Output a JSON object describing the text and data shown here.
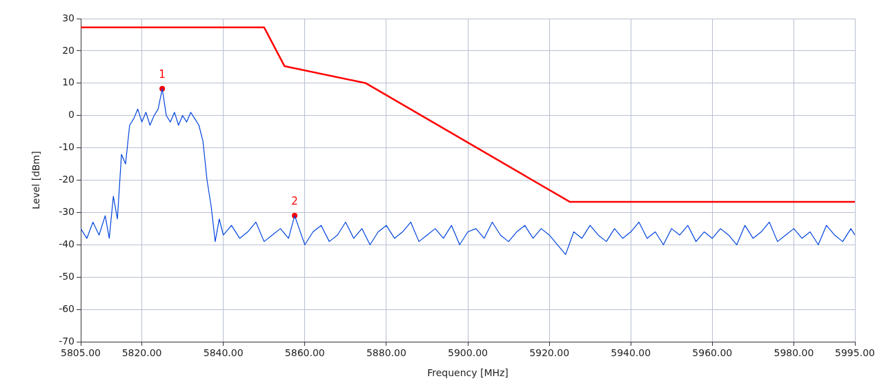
{
  "chart_data": {
    "type": "line",
    "xlabel": "Frequency [MHz]",
    "ylabel": "Level [dBm]",
    "xlim": [
      5805,
      5995
    ],
    "xticks": [
      {
        "value": 5805,
        "label": "5805.00"
      },
      {
        "value": 5820,
        "label": "5820.00"
      },
      {
        "value": 5840,
        "label": "5840.00"
      },
      {
        "value": 5860,
        "label": "5860.00"
      },
      {
        "value": 5880,
        "label": "5880.00"
      },
      {
        "value": 5900,
        "label": "5900.00"
      },
      {
        "value": 5920,
        "label": "5920.00"
      },
      {
        "value": 5940,
        "label": "5940.00"
      },
      {
        "value": 5960,
        "label": "5960.00"
      },
      {
        "value": 5980,
        "label": "5980.00"
      },
      {
        "value": 5995,
        "label": "5995.00"
      }
    ],
    "ylim": [
      -70,
      30
    ],
    "yticks": [
      -70,
      -60,
      -50,
      -40,
      -30,
      -20,
      -10,
      0,
      10,
      20,
      30
    ],
    "grid": true,
    "legend": false,
    "line_style": "solid",
    "series": [
      {
        "type": "line",
        "color": "#0044dd",
        "marker": "none",
        "x": [
          5805,
          5806.5,
          5808,
          5809.5,
          5811,
          5812,
          5813,
          5814,
          5815,
          5816,
          5817,
          5818,
          5819,
          5820,
          5821,
          5822,
          5823,
          5824,
          5825,
          5826,
          5827,
          5828,
          5829,
          5830,
          5831,
          5832,
          5833,
          5834,
          5835,
          5836,
          5837,
          5838,
          5839,
          5840,
          5842,
          5844,
          5846,
          5848,
          5850,
          5852,
          5854,
          5856,
          5857.5,
          5860,
          5862,
          5864,
          5866,
          5868,
          5870,
          5872,
          5874,
          5876,
          5878,
          5880,
          5882,
          5884,
          5886,
          5888,
          5890,
          5892,
          5894,
          5896,
          5898,
          5900,
          5902,
          5904,
          5906,
          5908,
          5910,
          5912,
          5914,
          5916,
          5918,
          5920,
          5922,
          5924,
          5926,
          5928,
          5930,
          5932,
          5934,
          5936,
          5938,
          5940,
          5942,
          5944,
          5946,
          5948,
          5950,
          5952,
          5954,
          5956,
          5958,
          5960,
          5962,
          5964,
          5966,
          5968,
          5970,
          5972,
          5974,
          5976,
          5978,
          5980,
          5982,
          5984,
          5986,
          5988,
          5990,
          5992,
          5994,
          5995
        ],
        "values": [
          -35,
          -38,
          -33,
          -37,
          -31,
          -38,
          -25,
          -32,
          -12,
          -15,
          -3,
          -1,
          2,
          -2,
          1,
          -3,
          0,
          2,
          8.3,
          0,
          -2,
          1,
          -3,
          0,
          -2,
          1,
          -1,
          -3,
          -8,
          -20,
          -28,
          -39,
          -32,
          -37,
          -34,
          -38,
          -36,
          -33,
          -39,
          -37,
          -35,
          -38,
          -31,
          -40,
          -36,
          -34,
          -39,
          -37,
          -33,
          -38,
          -35,
          -40,
          -36,
          -34,
          -38,
          -36,
          -33,
          -39,
          -37,
          -35,
          -38,
          -34,
          -40,
          -36,
          -35,
          -38,
          -33,
          -37,
          -39,
          -36,
          -34,
          -38,
          -35,
          -37,
          -40,
          -43,
          -36,
          -38,
          -34,
          -37,
          -39,
          -35,
          -38,
          -36,
          -33,
          -38,
          -36,
          -40,
          -35,
          -37,
          -34,
          -39,
          -36,
          -38,
          -35,
          -37,
          -40,
          -34,
          -38,
          -36,
          -33,
          -39,
          -37,
          -35,
          -38,
          -36,
          -40,
          -34,
          -37,
          -39,
          -35,
          -37
        ]
      },
      {
        "type": "line",
        "color": "#ff0000",
        "marker": "none",
        "x": [
          5805,
          5850,
          5855,
          5875,
          5925,
          5995
        ],
        "values": [
          27.3,
          27.3,
          15.3,
          10,
          -26.7,
          -26.7
        ]
      },
      {
        "type": "scatter",
        "color": "#ff0000",
        "marker": "circle",
        "x": [
          5825,
          5857.5
        ],
        "values": [
          8.3,
          -31
        ]
      }
    ],
    "annotations": [
      {
        "text": "1",
        "x": 5825,
        "y": 8.3
      },
      {
        "text": "2",
        "x": 5857.5,
        "y": -31
      }
    ]
  }
}
